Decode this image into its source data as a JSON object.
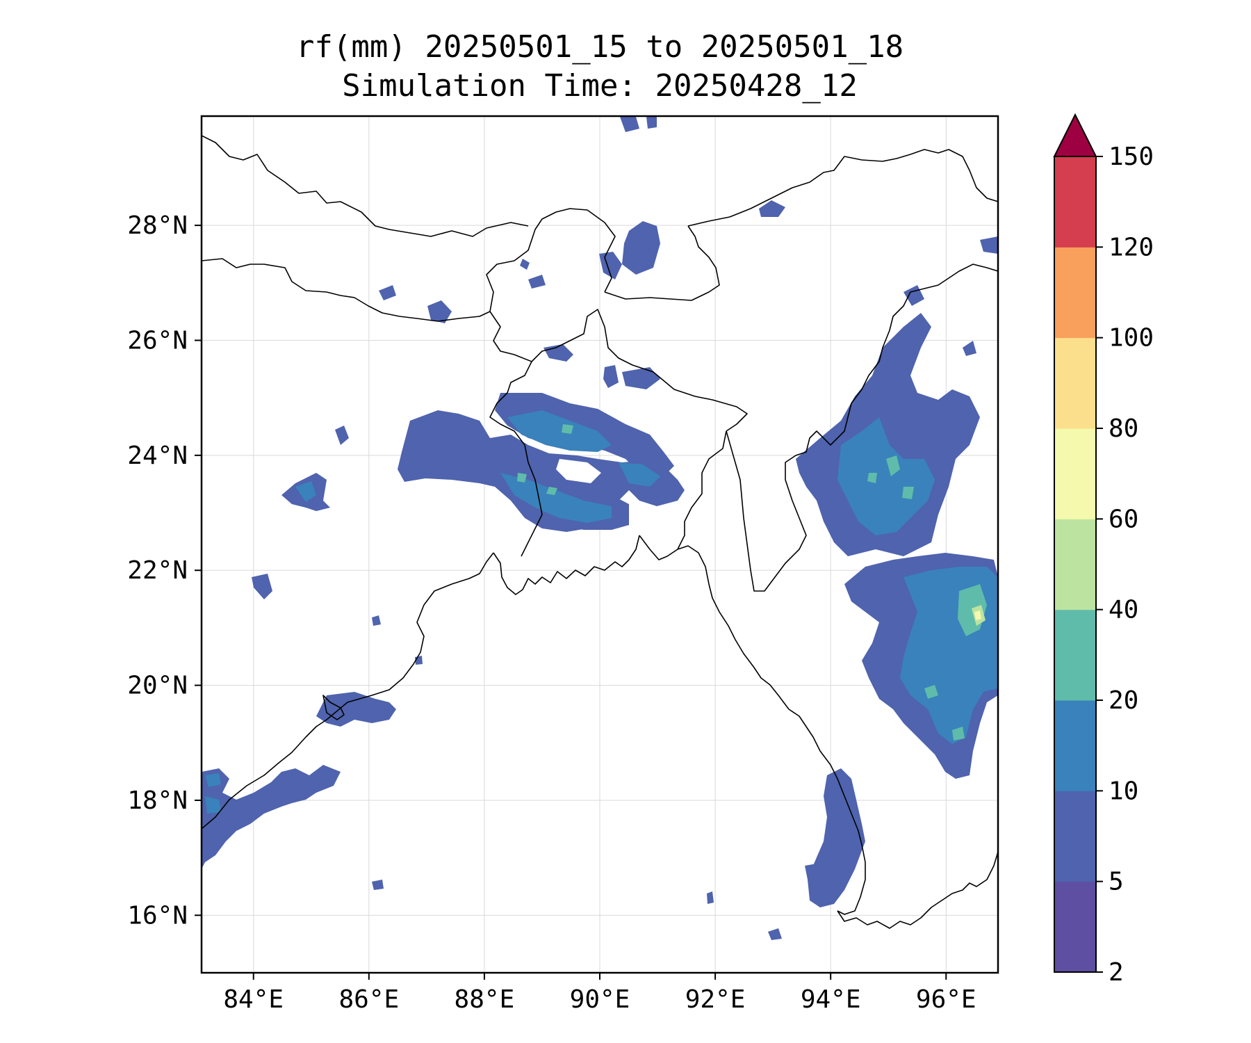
{
  "title": {
    "line1": "rf(mm) 20250501_15 to 20250501_18",
    "line2": "Simulation Time: 20250428_12"
  },
  "map": {
    "lon_range": [
      83.1,
      96.9
    ],
    "lat_range": [
      15.0,
      29.9
    ],
    "lon_ticks": [
      84,
      86,
      88,
      90,
      92,
      94,
      96
    ],
    "lat_ticks": [
      16,
      18,
      20,
      22,
      24,
      26,
      28
    ],
    "lon_tick_labels": [
      "84°E",
      "86°E",
      "88°E",
      "90°E",
      "92°E",
      "94°E",
      "96°E"
    ],
    "lat_tick_labels": [
      "16°N",
      "18°N",
      "20°N",
      "22°N",
      "24°N",
      "26°N",
      "28°N"
    ],
    "grid": true
  },
  "colorbar": {
    "levels": [
      "2",
      "5",
      "10",
      "20",
      "40",
      "60",
      "80",
      "100",
      "120",
      "150"
    ],
    "colors": [
      "#5e4fa2",
      "#4f63ae",
      "#3a82bb",
      "#5fbcaa",
      "#bde3a0",
      "#f4f9ad",
      "#fbdf8d",
      "#f9a05c",
      "#d53e4f"
    ],
    "extend_color": "#9e0142",
    "extend": "max"
  }
}
